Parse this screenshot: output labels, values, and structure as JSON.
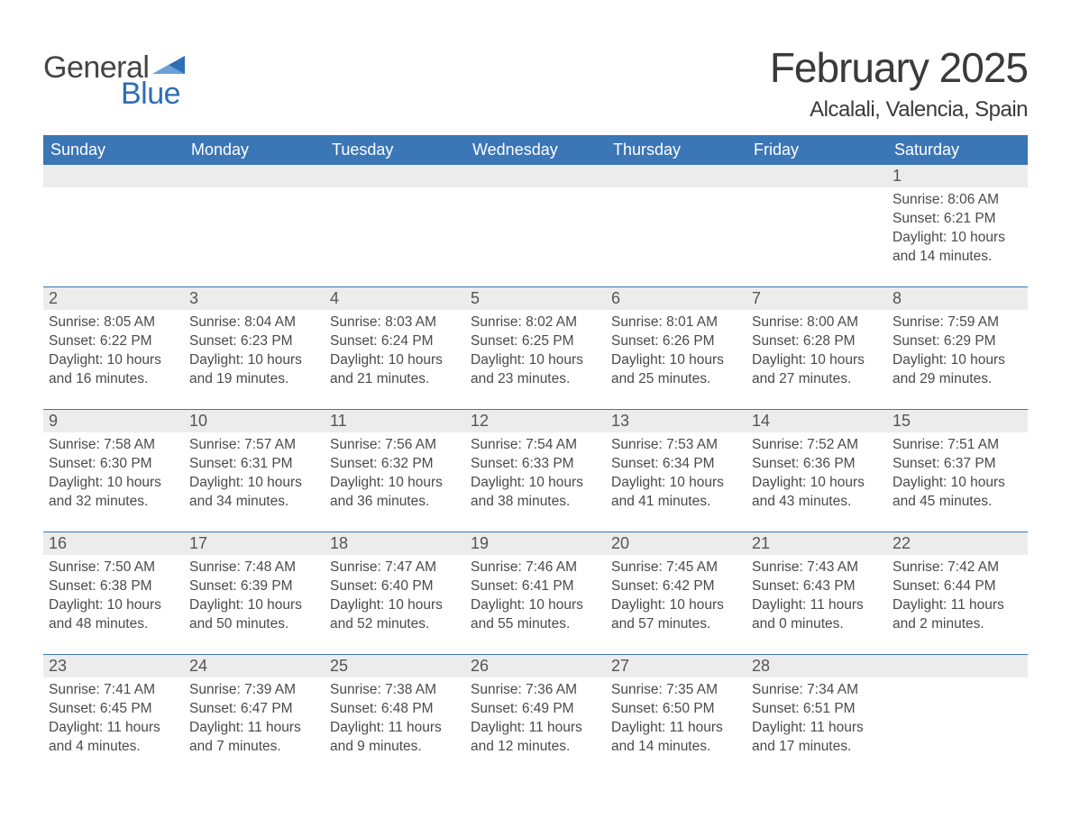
{
  "logo": {
    "word1": "General",
    "word2": "Blue",
    "accent_color": "#2e6eb5",
    "text_color": "#444444"
  },
  "title": {
    "month": "February 2025",
    "location": "Alcalali, Valencia, Spain"
  },
  "dow": [
    "Sunday",
    "Monday",
    "Tuesday",
    "Wednesday",
    "Thursday",
    "Friday",
    "Saturday"
  ],
  "colors": {
    "header_bg": "#3b76b6",
    "header_fg": "#ffffff",
    "daynum_bg": "#ececec",
    "week_border": "#3b76b6",
    "body_text": "#4a4a4a"
  },
  "weeks": [
    [
      null,
      null,
      null,
      null,
      null,
      null,
      {
        "n": "1",
        "sunrise": "Sunrise: 8:06 AM",
        "sunset": "Sunset: 6:21 PM",
        "daylight": "Daylight: 10 hours and 14 minutes."
      }
    ],
    [
      {
        "n": "2",
        "sunrise": "Sunrise: 8:05 AM",
        "sunset": "Sunset: 6:22 PM",
        "daylight": "Daylight: 10 hours and 16 minutes."
      },
      {
        "n": "3",
        "sunrise": "Sunrise: 8:04 AM",
        "sunset": "Sunset: 6:23 PM",
        "daylight": "Daylight: 10 hours and 19 minutes."
      },
      {
        "n": "4",
        "sunrise": "Sunrise: 8:03 AM",
        "sunset": "Sunset: 6:24 PM",
        "daylight": "Daylight: 10 hours and 21 minutes."
      },
      {
        "n": "5",
        "sunrise": "Sunrise: 8:02 AM",
        "sunset": "Sunset: 6:25 PM",
        "daylight": "Daylight: 10 hours and 23 minutes."
      },
      {
        "n": "6",
        "sunrise": "Sunrise: 8:01 AM",
        "sunset": "Sunset: 6:26 PM",
        "daylight": "Daylight: 10 hours and 25 minutes."
      },
      {
        "n": "7",
        "sunrise": "Sunrise: 8:00 AM",
        "sunset": "Sunset: 6:28 PM",
        "daylight": "Daylight: 10 hours and 27 minutes."
      },
      {
        "n": "8",
        "sunrise": "Sunrise: 7:59 AM",
        "sunset": "Sunset: 6:29 PM",
        "daylight": "Daylight: 10 hours and 29 minutes."
      }
    ],
    [
      {
        "n": "9",
        "sunrise": "Sunrise: 7:58 AM",
        "sunset": "Sunset: 6:30 PM",
        "daylight": "Daylight: 10 hours and 32 minutes."
      },
      {
        "n": "10",
        "sunrise": "Sunrise: 7:57 AM",
        "sunset": "Sunset: 6:31 PM",
        "daylight": "Daylight: 10 hours and 34 minutes."
      },
      {
        "n": "11",
        "sunrise": "Sunrise: 7:56 AM",
        "sunset": "Sunset: 6:32 PM",
        "daylight": "Daylight: 10 hours and 36 minutes."
      },
      {
        "n": "12",
        "sunrise": "Sunrise: 7:54 AM",
        "sunset": "Sunset: 6:33 PM",
        "daylight": "Daylight: 10 hours and 38 minutes."
      },
      {
        "n": "13",
        "sunrise": "Sunrise: 7:53 AM",
        "sunset": "Sunset: 6:34 PM",
        "daylight": "Daylight: 10 hours and 41 minutes."
      },
      {
        "n": "14",
        "sunrise": "Sunrise: 7:52 AM",
        "sunset": "Sunset: 6:36 PM",
        "daylight": "Daylight: 10 hours and 43 minutes."
      },
      {
        "n": "15",
        "sunrise": "Sunrise: 7:51 AM",
        "sunset": "Sunset: 6:37 PM",
        "daylight": "Daylight: 10 hours and 45 minutes."
      }
    ],
    [
      {
        "n": "16",
        "sunrise": "Sunrise: 7:50 AM",
        "sunset": "Sunset: 6:38 PM",
        "daylight": "Daylight: 10 hours and 48 minutes."
      },
      {
        "n": "17",
        "sunrise": "Sunrise: 7:48 AM",
        "sunset": "Sunset: 6:39 PM",
        "daylight": "Daylight: 10 hours and 50 minutes."
      },
      {
        "n": "18",
        "sunrise": "Sunrise: 7:47 AM",
        "sunset": "Sunset: 6:40 PM",
        "daylight": "Daylight: 10 hours and 52 minutes."
      },
      {
        "n": "19",
        "sunrise": "Sunrise: 7:46 AM",
        "sunset": "Sunset: 6:41 PM",
        "daylight": "Daylight: 10 hours and 55 minutes."
      },
      {
        "n": "20",
        "sunrise": "Sunrise: 7:45 AM",
        "sunset": "Sunset: 6:42 PM",
        "daylight": "Daylight: 10 hours and 57 minutes."
      },
      {
        "n": "21",
        "sunrise": "Sunrise: 7:43 AM",
        "sunset": "Sunset: 6:43 PM",
        "daylight": "Daylight: 11 hours and 0 minutes."
      },
      {
        "n": "22",
        "sunrise": "Sunrise: 7:42 AM",
        "sunset": "Sunset: 6:44 PM",
        "daylight": "Daylight: 11 hours and 2 minutes."
      }
    ],
    [
      {
        "n": "23",
        "sunrise": "Sunrise: 7:41 AM",
        "sunset": "Sunset: 6:45 PM",
        "daylight": "Daylight: 11 hours and 4 minutes."
      },
      {
        "n": "24",
        "sunrise": "Sunrise: 7:39 AM",
        "sunset": "Sunset: 6:47 PM",
        "daylight": "Daylight: 11 hours and 7 minutes."
      },
      {
        "n": "25",
        "sunrise": "Sunrise: 7:38 AM",
        "sunset": "Sunset: 6:48 PM",
        "daylight": "Daylight: 11 hours and 9 minutes."
      },
      {
        "n": "26",
        "sunrise": "Sunrise: 7:36 AM",
        "sunset": "Sunset: 6:49 PM",
        "daylight": "Daylight: 11 hours and 12 minutes."
      },
      {
        "n": "27",
        "sunrise": "Sunrise: 7:35 AM",
        "sunset": "Sunset: 6:50 PM",
        "daylight": "Daylight: 11 hours and 14 minutes."
      },
      {
        "n": "28",
        "sunrise": "Sunrise: 7:34 AM",
        "sunset": "Sunset: 6:51 PM",
        "daylight": "Daylight: 11 hours and 17 minutes."
      },
      null
    ]
  ]
}
